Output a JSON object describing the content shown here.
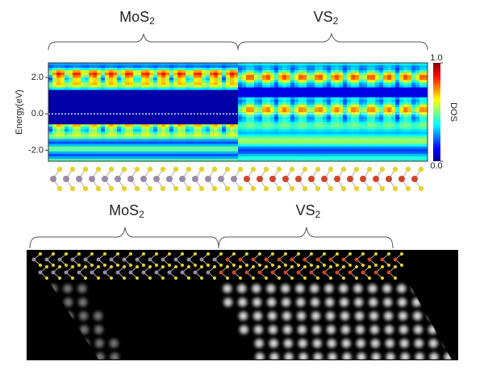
{
  "top_panel": {
    "labels": [
      {
        "base": "MoS",
        "sub": "2"
      },
      {
        "base": "VS",
        "sub": "2"
      }
    ],
    "y_axis_label": "Energy(eV)",
    "ylim": [
      -2.6,
      2.8
    ],
    "yticks": [
      {
        "value": 2,
        "label": "2.0"
      },
      {
        "value": 0,
        "label": "0.0"
      },
      {
        "value": -2,
        "label": "-2.0"
      }
    ],
    "colorbar": {
      "label": "DOS",
      "ticks": [
        {
          "value": 1,
          "label": "1.0"
        },
        {
          "value": 0,
          "label": "0.0"
        }
      ]
    }
  },
  "bottom_panel": {
    "labels": [
      {
        "base": "MoS",
        "sub": "2"
      },
      {
        "base": "VS",
        "sub": "2"
      }
    ]
  }
}
